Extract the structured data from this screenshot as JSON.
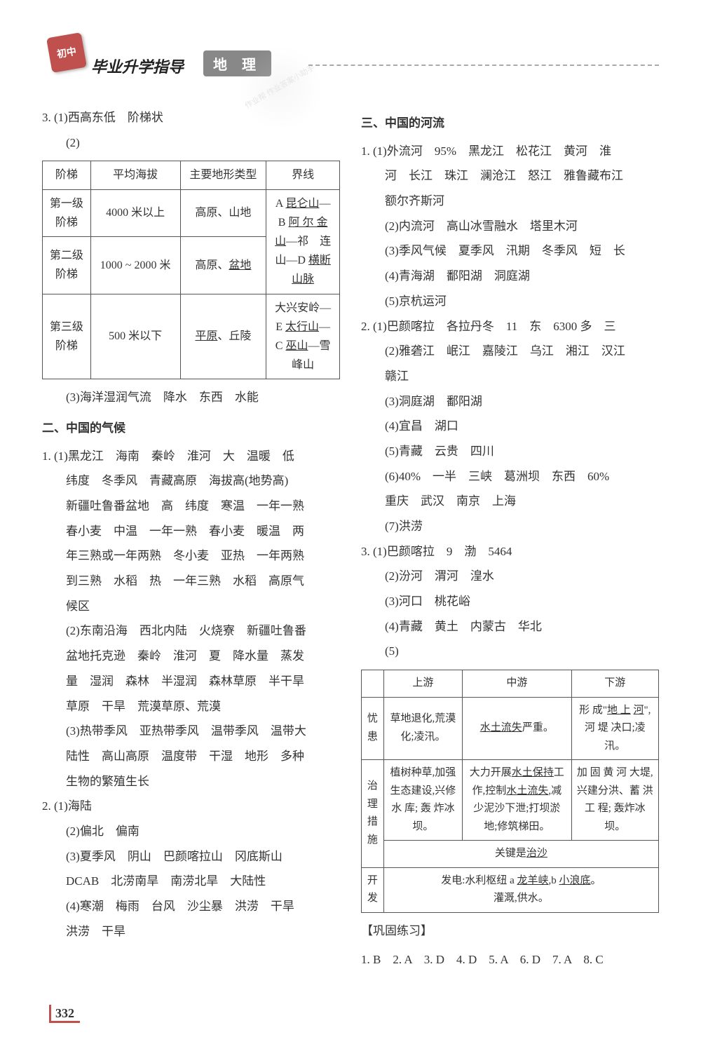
{
  "header": {
    "badge": "初中",
    "title": "毕业升学指导",
    "subject": "地 理",
    "watermark": "作业帮\n作业答案小助手"
  },
  "left": {
    "q3_1": "3. (1)西高东低　阶梯状",
    "q3_2": "(2)",
    "table1": {
      "headers": [
        "阶梯",
        "平均海拔",
        "主要地形类型",
        "界线"
      ],
      "rows": [
        [
          "第一级\n阶梯",
          "4000 米以上",
          "高原、山地",
          "A 昆仑山—\nB 阿 尔 金\n山—祁　连"
        ],
        [
          "第二级\n阶梯",
          "1000 ~ 2000 米",
          "高原、盆地",
          "山—D 横断\n山脉"
        ],
        [
          "",
          "",
          "",
          "大兴安岭—"
        ],
        [
          "第三级\n阶梯",
          "500 米以下",
          "平原、丘陵",
          "E 太行山—\nC 巫山—雪\n峰山"
        ]
      ]
    },
    "q3_3": "(3)海洋湿润气流　降水　东西　水能",
    "sec2_title": "二、中国的气候",
    "s2_q1_1": "1. (1)黑龙江　海南　秦岭　淮河　大　温暖　低",
    "s2_q1_1b": "纬度　冬季风　青藏高原　海拔高(地势高)",
    "s2_q1_1c": "新疆吐鲁番盆地　高　纬度　寒温　一年一熟",
    "s2_q1_1d": "春小麦　中温　一年一熟　春小麦　暖温　两",
    "s2_q1_1e": "年三熟或一年两熟　冬小麦　亚热　一年两熟",
    "s2_q1_1f": "到三熟　水稻　热　一年三熟　水稻　高原气",
    "s2_q1_1g": "候区",
    "s2_q1_2": "(2)东南沿海　西北内陆　火烧寮　新疆吐鲁番",
    "s2_q1_2b": "盆地托克逊　秦岭　淮河　夏　降水量　蒸发",
    "s2_q1_2c": "量　湿润　森林　半湿润　森林草原　半干旱",
    "s2_q1_2d": "草原　干旱　荒漠草原、荒漠",
    "s2_q1_3": "(3)热带季风　亚热带季风　温带季风　温带大",
    "s2_q1_3b": "陆性　高山高原　温度带　干湿　地形　多种",
    "s2_q1_3c": "生物的繁殖生长",
    "s2_q2_1": "2. (1)海陆",
    "s2_q2_2": "(2)偏北　偏南",
    "s2_q2_3": "(3)夏季风　阴山　巴颜喀拉山　冈底斯山",
    "s2_q2_3b": "DCAB　北涝南旱　南涝北旱　大陆性",
    "s2_q2_4": "(4)寒潮　梅雨　台风　沙尘暴　洪涝　干旱",
    "s2_q2_4b": "洪涝　干旱"
  },
  "right": {
    "sec3_title": "三、中国的河流",
    "s3_q1_1": "1. (1)外流河　95%　黑龙江　松花江　黄河　淮",
    "s3_q1_1b": "河　长江　珠江　澜沧江　怒江　雅鲁藏布江",
    "s3_q1_1c": "额尔齐斯河",
    "s3_q1_2": "(2)内流河　高山冰雪融水　塔里木河",
    "s3_q1_3": "(3)季风气候　夏季风　汛期　冬季风　短　长",
    "s3_q1_4": "(4)青海湖　鄱阳湖　洞庭湖",
    "s3_q1_5": "(5)京杭运河",
    "s3_q2_1": "2. (1)巴颜喀拉　各拉丹冬　11　东　6300 多　三",
    "s3_q2_2": "(2)雅砻江　岷江　嘉陵江　乌江　湘江　汉江",
    "s3_q2_2b": "赣江",
    "s3_q2_3": "(3)洞庭湖　鄱阳湖",
    "s3_q2_4": "(4)宜昌　湖口",
    "s3_q2_5": "(5)青藏　云贵　四川",
    "s3_q2_6": "(6)40%　一半　三峡　葛洲坝　东西　60%",
    "s3_q2_6b": "重庆　武汉　南京　上海",
    "s3_q2_7": "(7)洪涝",
    "s3_q3_1": "3. (1)巴颜喀拉　9　渤　5464",
    "s3_q3_2": "(2)汾河　渭河　湟水",
    "s3_q3_3": "(3)河口　桃花峪",
    "s3_q3_4": "(4)青藏　黄土　内蒙古　华北",
    "s3_q3_5": "(5)",
    "table2": {
      "headers": [
        "",
        "上游",
        "中游",
        "下游"
      ],
      "r1": [
        "忧患",
        "草地退化,荒漠化;凌汛。",
        "水土流失严重。",
        "形 成\"地 上 河\",河 堤 决口;凌汛。"
      ],
      "r2": [
        "治理\n措施",
        "植树种草,加强生态建设,兴修水 库; 轰 炸冰坝。",
        "大力开展水土保持工作,控制水土流失,减少泥沙下泄;打坝淤地;修筑梯田。",
        "加 固 黄 河 大堤,兴建分洪、蓄 洪 工 程; 轰炸冰坝。"
      ],
      "r3_label": "关键是治沙",
      "r4": [
        "开发",
        "发电:水利枢纽 a 龙羊峡,b 小浪底。\n灌溉,供水。"
      ]
    },
    "practice_title": "【巩固练习】",
    "answers": "1. B　2. A　3. D　4. D　5. A　6. D　7. A　8. C"
  },
  "page_number": "332"
}
